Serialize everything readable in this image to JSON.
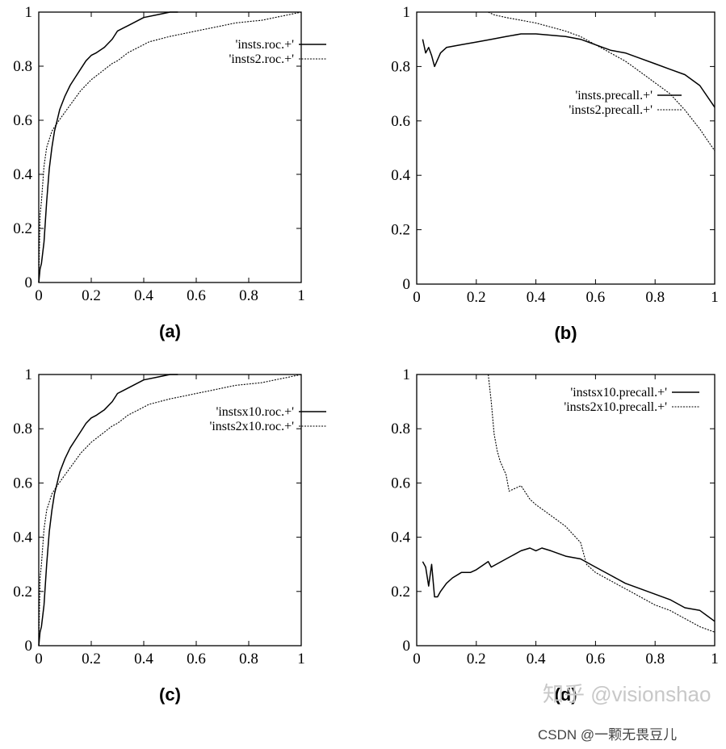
{
  "chart_data": [
    {
      "type": "line",
      "caption": "(a)",
      "xlim": [
        0,
        1
      ],
      "ylim": [
        0,
        1
      ],
      "xticks": [
        "0",
        "0.2",
        "0.4",
        "0.6",
        "0.8",
        "1"
      ],
      "yticks": [
        "0",
        "0.2",
        "0.4",
        "0.6",
        "0.8",
        "1"
      ],
      "legend_position": "top-right",
      "series": [
        {
          "name": "'insts.roc.+'",
          "style": "solid",
          "x": [
            0,
            0.005,
            0.01,
            0.02,
            0.03,
            0.04,
            0.05,
            0.06,
            0.07,
            0.08,
            0.1,
            0.12,
            0.14,
            0.16,
            0.18,
            0.2,
            0.22,
            0.25,
            0.28,
            0.3,
            0.32,
            0.34,
            0.36,
            0.4,
            0.45,
            0.5,
            0.53
          ],
          "y": [
            0,
            0.05,
            0.07,
            0.15,
            0.3,
            0.42,
            0.5,
            0.56,
            0.6,
            0.64,
            0.69,
            0.73,
            0.76,
            0.79,
            0.82,
            0.84,
            0.85,
            0.87,
            0.9,
            0.93,
            0.94,
            0.95,
            0.96,
            0.98,
            0.99,
            1.0,
            1.0
          ]
        },
        {
          "name": "'insts2.roc.+'",
          "style": "dotted",
          "x": [
            0,
            0.005,
            0.01,
            0.02,
            0.03,
            0.05,
            0.07,
            0.1,
            0.13,
            0.16,
            0.2,
            0.24,
            0.28,
            0.3,
            0.34,
            0.38,
            0.42,
            0.46,
            0.5,
            0.55,
            0.6,
            0.65,
            0.7,
            0.75,
            0.8,
            0.85,
            0.9,
            0.95,
            1.0
          ],
          "y": [
            0,
            0.25,
            0.3,
            0.43,
            0.5,
            0.56,
            0.59,
            0.63,
            0.67,
            0.71,
            0.75,
            0.78,
            0.81,
            0.82,
            0.85,
            0.87,
            0.89,
            0.9,
            0.91,
            0.92,
            0.93,
            0.94,
            0.95,
            0.96,
            0.965,
            0.97,
            0.98,
            0.99,
            1.0
          ]
        }
      ]
    },
    {
      "type": "line",
      "caption": "(b)",
      "xlim": [
        0,
        1
      ],
      "ylim": [
        0,
        1
      ],
      "xticks": [
        "0",
        "0.2",
        "0.4",
        "0.6",
        "0.8",
        "1"
      ],
      "yticks": [
        "0",
        "0.2",
        "0.4",
        "0.6",
        "0.8",
        "1"
      ],
      "legend_position": "right",
      "series": [
        {
          "name": "'insts.precall.+'",
          "style": "solid",
          "x": [
            0.02,
            0.03,
            0.04,
            0.05,
            0.06,
            0.08,
            0.1,
            0.15,
            0.2,
            0.25,
            0.3,
            0.35,
            0.4,
            0.45,
            0.5,
            0.55,
            0.6,
            0.65,
            0.7,
            0.75,
            0.8,
            0.85,
            0.9,
            0.95,
            1.0
          ],
          "y": [
            0.9,
            0.85,
            0.87,
            0.84,
            0.8,
            0.85,
            0.87,
            0.88,
            0.89,
            0.9,
            0.91,
            0.92,
            0.92,
            0.915,
            0.91,
            0.9,
            0.88,
            0.86,
            0.85,
            0.83,
            0.81,
            0.79,
            0.77,
            0.73,
            0.65
          ]
        },
        {
          "name": "'insts2.precall.+'",
          "style": "dotted",
          "x": [
            0.24,
            0.26,
            0.3,
            0.35,
            0.4,
            0.45,
            0.5,
            0.55,
            0.6,
            0.65,
            0.7,
            0.75,
            0.8,
            0.85,
            0.9,
            0.95,
            1.0
          ],
          "y": [
            1.0,
            0.99,
            0.98,
            0.97,
            0.96,
            0.945,
            0.93,
            0.91,
            0.88,
            0.85,
            0.82,
            0.78,
            0.74,
            0.7,
            0.64,
            0.57,
            0.49
          ]
        }
      ]
    },
    {
      "type": "line",
      "caption": "(c)",
      "xlim": [
        0,
        1
      ],
      "ylim": [
        0,
        1
      ],
      "xticks": [
        "0",
        "0.2",
        "0.4",
        "0.6",
        "0.8",
        "1"
      ],
      "yticks": [
        "0",
        "0.2",
        "0.4",
        "0.6",
        "0.8",
        "1"
      ],
      "legend_position": "top-right",
      "series": [
        {
          "name": "'instsx10.roc.+'",
          "style": "solid",
          "x": [
            0,
            0.005,
            0.01,
            0.02,
            0.03,
            0.04,
            0.05,
            0.06,
            0.07,
            0.08,
            0.1,
            0.12,
            0.14,
            0.16,
            0.18,
            0.2,
            0.22,
            0.25,
            0.28,
            0.3,
            0.32,
            0.34,
            0.36,
            0.4,
            0.45,
            0.5,
            0.53
          ],
          "y": [
            0,
            0.05,
            0.07,
            0.15,
            0.3,
            0.42,
            0.5,
            0.56,
            0.6,
            0.64,
            0.69,
            0.73,
            0.76,
            0.79,
            0.82,
            0.84,
            0.85,
            0.87,
            0.9,
            0.93,
            0.94,
            0.95,
            0.96,
            0.98,
            0.99,
            1.0,
            1.0
          ]
        },
        {
          "name": "'insts2x10.roc.+'",
          "style": "dotted",
          "x": [
            0,
            0.005,
            0.01,
            0.02,
            0.03,
            0.05,
            0.07,
            0.1,
            0.13,
            0.16,
            0.2,
            0.24,
            0.28,
            0.3,
            0.34,
            0.38,
            0.42,
            0.46,
            0.5,
            0.55,
            0.6,
            0.65,
            0.7,
            0.75,
            0.8,
            0.85,
            0.9,
            0.95,
            1.0
          ],
          "y": [
            0,
            0.25,
            0.3,
            0.43,
            0.5,
            0.56,
            0.59,
            0.63,
            0.67,
            0.71,
            0.75,
            0.78,
            0.81,
            0.82,
            0.85,
            0.87,
            0.89,
            0.9,
            0.91,
            0.92,
            0.93,
            0.94,
            0.95,
            0.96,
            0.965,
            0.97,
            0.98,
            0.99,
            1.0
          ]
        }
      ]
    },
    {
      "type": "line",
      "caption": "(d)",
      "xlim": [
        0,
        1
      ],
      "ylim": [
        0,
        1
      ],
      "xticks": [
        "0",
        "0.2",
        "0.4",
        "0.6",
        "0.8",
        "1"
      ],
      "yticks": [
        "0",
        "0.2",
        "0.4",
        "0.6",
        "0.8",
        "1"
      ],
      "legend_position": "top-right",
      "series": [
        {
          "name": "'instsx10.precall.+'",
          "style": "solid",
          "x": [
            0.02,
            0.03,
            0.04,
            0.05,
            0.06,
            0.07,
            0.08,
            0.1,
            0.12,
            0.15,
            0.18,
            0.2,
            0.24,
            0.25,
            0.3,
            0.35,
            0.38,
            0.4,
            0.42,
            0.45,
            0.5,
            0.55,
            0.6,
            0.65,
            0.7,
            0.75,
            0.8,
            0.85,
            0.9,
            0.95,
            1.0
          ],
          "y": [
            0.31,
            0.29,
            0.22,
            0.3,
            0.18,
            0.18,
            0.2,
            0.23,
            0.25,
            0.27,
            0.27,
            0.28,
            0.31,
            0.29,
            0.32,
            0.35,
            0.36,
            0.35,
            0.36,
            0.35,
            0.33,
            0.32,
            0.29,
            0.26,
            0.23,
            0.21,
            0.19,
            0.17,
            0.14,
            0.13,
            0.09
          ]
        },
        {
          "name": "'insts2x10.precall.+'",
          "style": "dotted",
          "x": [
            0.24,
            0.25,
            0.26,
            0.27,
            0.28,
            0.3,
            0.31,
            0.33,
            0.35,
            0.38,
            0.4,
            0.45,
            0.5,
            0.55,
            0.57,
            0.6,
            0.65,
            0.7,
            0.75,
            0.8,
            0.85,
            0.9,
            0.95,
            1.0
          ],
          "y": [
            1.0,
            0.9,
            0.78,
            0.72,
            0.68,
            0.63,
            0.57,
            0.58,
            0.59,
            0.54,
            0.52,
            0.48,
            0.44,
            0.38,
            0.3,
            0.27,
            0.24,
            0.21,
            0.18,
            0.15,
            0.13,
            0.1,
            0.07,
            0.05
          ]
        }
      ]
    }
  ],
  "watermarks": {
    "zhihu": "知乎 @visionshao",
    "csdn": "CSDN @一颗无畏豆儿"
  }
}
